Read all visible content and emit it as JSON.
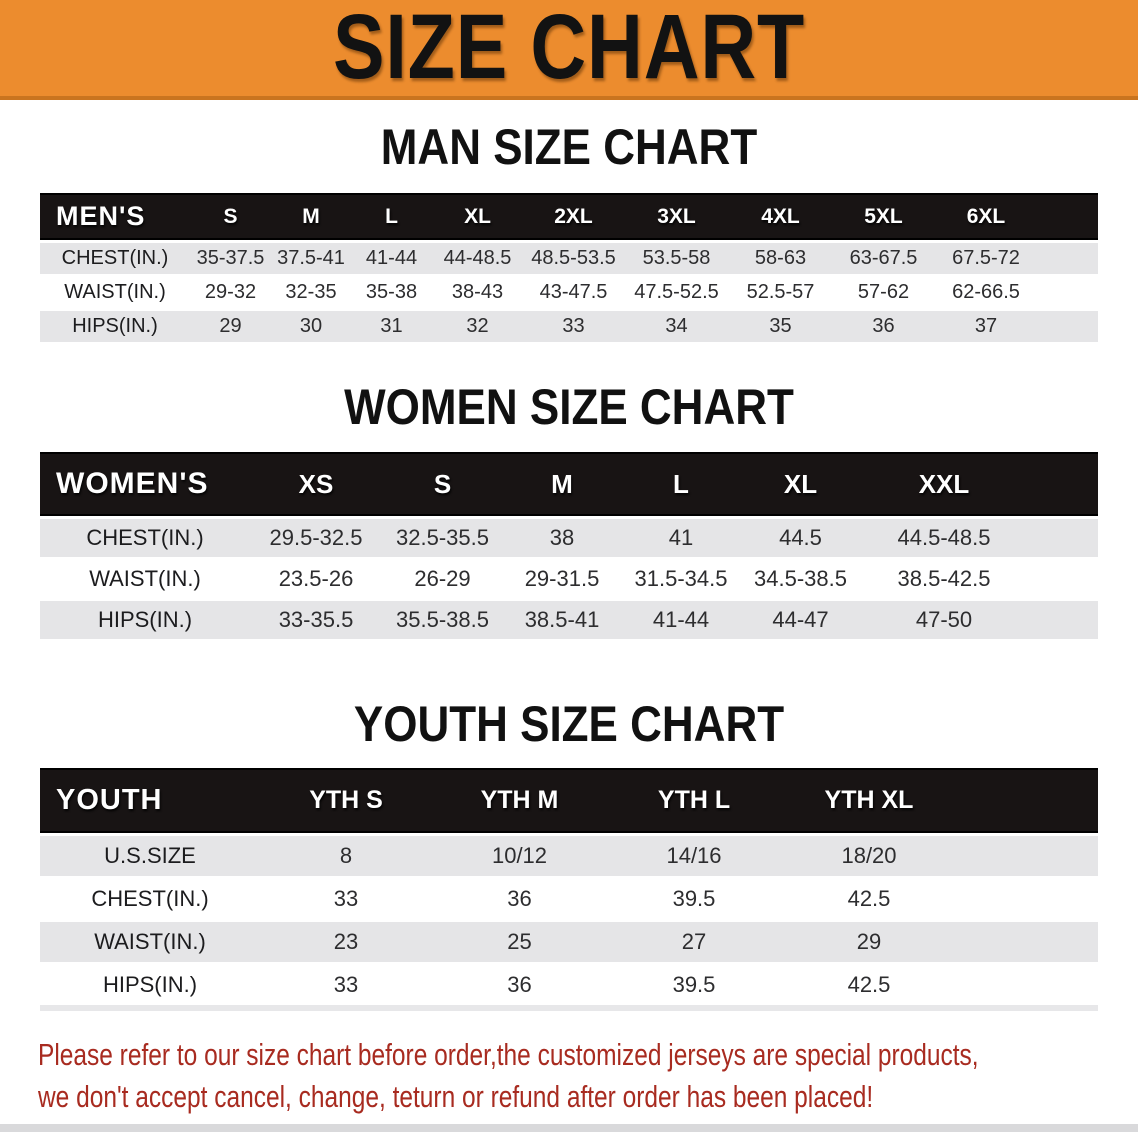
{
  "banner": {
    "title": "SIZE CHART",
    "bg_color": "#EC8C2E",
    "text_color": "#121212"
  },
  "sections": [
    {
      "heading": "MAN SIZE CHART",
      "table": {
        "header_label": "MEN'S",
        "columns": [
          "S",
          "M",
          "L",
          "XL",
          "2XL",
          "3XL",
          "4XL",
          "5XL",
          "6XL"
        ],
        "rows": [
          {
            "label": "CHEST(IN.)",
            "shade": "gray",
            "values": [
              "35-37.5",
              "37.5-41",
              "41-44",
              "44-48.5",
              "48.5-53.5",
              "53.5-58",
              "58-63",
              "63-67.5",
              "67.5-72"
            ]
          },
          {
            "label": "WAIST(IN.)",
            "shade": "white",
            "values": [
              "29-32",
              "32-35",
              "35-38",
              "38-43",
              "43-47.5",
              "47.5-52.5",
              "52.5-57",
              "57-62",
              "62-66.5"
            ]
          },
          {
            "label": "HIPS(IN.)",
            "shade": "gray",
            "values": [
              "29",
              "30",
              "31",
              "32",
              "33",
              "34",
              "35",
              "36",
              "37"
            ]
          }
        ]
      }
    },
    {
      "heading": "WOMEN SIZE CHART",
      "table": {
        "header_label": "WOMEN'S",
        "columns": [
          "XS",
          "S",
          "M",
          "L",
          "XL",
          "XXL"
        ],
        "rows": [
          {
            "label": "CHEST(IN.)",
            "shade": "gray",
            "values": [
              "29.5-32.5",
              "32.5-35.5",
              "38",
              "41",
              "44.5",
              "44.5-48.5"
            ]
          },
          {
            "label": "WAIST(IN.)",
            "shade": "white",
            "values": [
              "23.5-26",
              "26-29",
              "29-31.5",
              "31.5-34.5",
              "34.5-38.5",
              "38.5-42.5"
            ]
          },
          {
            "label": "HIPS(IN.)",
            "shade": "gray",
            "values": [
              "33-35.5",
              "35.5-38.5",
              "38.5-41",
              "41-44",
              "44-47",
              "47-50"
            ]
          }
        ]
      }
    },
    {
      "heading": "YOUTH SIZE CHART",
      "table": {
        "header_label": "YOUTH",
        "columns": [
          "YTH S",
          "YTH M",
          "YTH L",
          "YTH XL"
        ],
        "rows": [
          {
            "label": "U.S.SIZE",
            "shade": "gray",
            "values": [
              "8",
              "10/12",
              "14/16",
              "18/20"
            ]
          },
          {
            "label": "CHEST(IN.)",
            "shade": "white",
            "values": [
              "33",
              "36",
              "39.5",
              "42.5"
            ]
          },
          {
            "label": "WAIST(IN.)",
            "shade": "gray",
            "values": [
              "23",
              "25",
              "27",
              "29"
            ]
          },
          {
            "label": "HIPS(IN.)",
            "shade": "white",
            "values": [
              "33",
              "36",
              "39.5",
              "42.5"
            ]
          }
        ]
      }
    }
  ],
  "disclaimer": {
    "line1": "Please refer to our size chart before order,the customized jerseys are special products,",
    "line2": "we don't accept cancel, change, teturn or refund after order has been placed!",
    "color": "#A82B20"
  },
  "colors": {
    "header_bar": "#181414",
    "row_gray": "#E5E5E7",
    "row_white": "#FFFFFF",
    "banner_orange": "#EC8C2E"
  }
}
